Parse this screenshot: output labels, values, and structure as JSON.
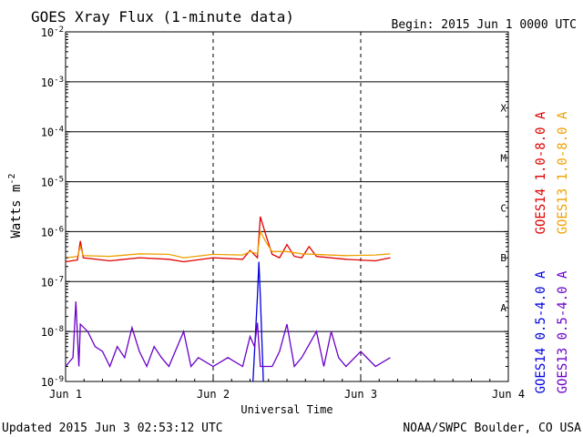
{
  "chart_data": {
    "type": "line",
    "title": "GOES Xray Flux (1-minute data)",
    "begin_label": "Begin:  2015 Jun 1 0000 UTC",
    "xlabel": "Universal Time",
    "ylabel": "Watts m",
    "ylabel_sup": "-2",
    "log_scale": true,
    "ylim": [
      1e-09,
      0.01
    ],
    "xlim_days": [
      0,
      3
    ],
    "x_ticks": [
      "Jun 1",
      "Jun 2",
      "Jun 3",
      "Jun 4"
    ],
    "y_ticks": [
      {
        "base": "10",
        "exp": "-9"
      },
      {
        "base": "10",
        "exp": "-8"
      },
      {
        "base": "10",
        "exp": "-7"
      },
      {
        "base": "10",
        "exp": "-6"
      },
      {
        "base": "10",
        "exp": "-5"
      },
      {
        "base": "10",
        "exp": "-4"
      },
      {
        "base": "10",
        "exp": "-3"
      },
      {
        "base": "10",
        "exp": "-2"
      }
    ],
    "flare_classes": [
      "A",
      "B",
      "C",
      "M",
      "X"
    ],
    "series": [
      {
        "name": "GOES14 1.0-8.0 A",
        "color": "#e00000",
        "points": [
          [
            0,
            2.5e-07
          ],
          [
            0.08,
            2.7e-07
          ],
          [
            0.1,
            6.5e-07
          ],
          [
            0.12,
            3e-07
          ],
          [
            0.3,
            2.6e-07
          ],
          [
            0.5,
            3e-07
          ],
          [
            0.7,
            2.8e-07
          ],
          [
            0.8,
            2.5e-07
          ],
          [
            1.0,
            3e-07
          ],
          [
            1.2,
            2.8e-07
          ],
          [
            1.25,
            4.2e-07
          ],
          [
            1.3,
            3e-07
          ],
          [
            1.32,
            2e-06
          ],
          [
            1.36,
            8e-07
          ],
          [
            1.4,
            3.5e-07
          ],
          [
            1.45,
            3e-07
          ],
          [
            1.5,
            5.5e-07
          ],
          [
            1.55,
            3.2e-07
          ],
          [
            1.6,
            3e-07
          ],
          [
            1.65,
            5e-07
          ],
          [
            1.7,
            3.2e-07
          ],
          [
            1.9,
            2.8e-07
          ],
          [
            2.1,
            2.6e-07
          ],
          [
            2.2,
            3e-07
          ]
        ]
      },
      {
        "name": "GOES13 1.0-8.0 A",
        "color": "#f0a000",
        "points": [
          [
            0,
            3e-07
          ],
          [
            0.08,
            3.2e-07
          ],
          [
            0.1,
            5e-07
          ],
          [
            0.12,
            3.3e-07
          ],
          [
            0.3,
            3.2e-07
          ],
          [
            0.5,
            3.6e-07
          ],
          [
            0.7,
            3.5e-07
          ],
          [
            0.8,
            3e-07
          ],
          [
            1.0,
            3.5e-07
          ],
          [
            1.2,
            3.4e-07
          ],
          [
            1.25,
            4e-07
          ],
          [
            1.3,
            3.6e-07
          ],
          [
            1.32,
            1e-06
          ],
          [
            1.36,
            6e-07
          ],
          [
            1.4,
            4e-07
          ],
          [
            1.5,
            4e-07
          ],
          [
            1.6,
            3.6e-07
          ],
          [
            1.9,
            3.3e-07
          ],
          [
            2.1,
            3.4e-07
          ],
          [
            2.2,
            3.6e-07
          ]
        ]
      },
      {
        "name": "GOES14 0.5-4.0 A",
        "color": "#0000e0",
        "points": [
          [
            1.27,
            1e-09
          ],
          [
            1.3,
            5e-08
          ],
          [
            1.31,
            2.5e-07
          ],
          [
            1.32,
            5e-08
          ],
          [
            1.34,
            1e-09
          ]
        ]
      },
      {
        "name": "GOES13 0.5-4.0 A",
        "color": "#6a00c8",
        "points": [
          [
            0,
            2e-09
          ],
          [
            0.05,
            3e-09
          ],
          [
            0.07,
            4e-08
          ],
          [
            0.09,
            2e-09
          ],
          [
            0.1,
            1.4e-08
          ],
          [
            0.15,
            1e-08
          ],
          [
            0.2,
            5e-09
          ],
          [
            0.25,
            4e-09
          ],
          [
            0.3,
            2e-09
          ],
          [
            0.35,
            5e-09
          ],
          [
            0.4,
            3e-09
          ],
          [
            0.45,
            1.2e-08
          ],
          [
            0.5,
            4e-09
          ],
          [
            0.55,
            2e-09
          ],
          [
            0.6,
            5e-09
          ],
          [
            0.65,
            3e-09
          ],
          [
            0.7,
            2e-09
          ],
          [
            0.8,
            1e-08
          ],
          [
            0.85,
            2e-09
          ],
          [
            0.9,
            3e-09
          ],
          [
            1.0,
            2e-09
          ],
          [
            1.1,
            3e-09
          ],
          [
            1.2,
            2e-09
          ],
          [
            1.25,
            8e-09
          ],
          [
            1.28,
            5e-09
          ],
          [
            1.3,
            1.5e-08
          ],
          [
            1.32,
            2e-09
          ],
          [
            1.35,
            2e-09
          ],
          [
            1.4,
            2e-09
          ],
          [
            1.45,
            4e-09
          ],
          [
            1.5,
            1.4e-08
          ],
          [
            1.55,
            2e-09
          ],
          [
            1.6,
            3e-09
          ],
          [
            1.7,
            1e-08
          ],
          [
            1.75,
            2e-09
          ],
          [
            1.8,
            1e-08
          ],
          [
            1.85,
            3e-09
          ],
          [
            1.9,
            2e-09
          ],
          [
            2.0,
            4e-09
          ],
          [
            2.1,
            2e-09
          ],
          [
            2.2,
            3e-09
          ]
        ]
      }
    ],
    "legend_placement": "right"
  },
  "footer": {
    "updated": "Updated 2015 Jun  3 02:53:12 UTC",
    "credit": "NOAA/SWPC Boulder, CO USA"
  }
}
